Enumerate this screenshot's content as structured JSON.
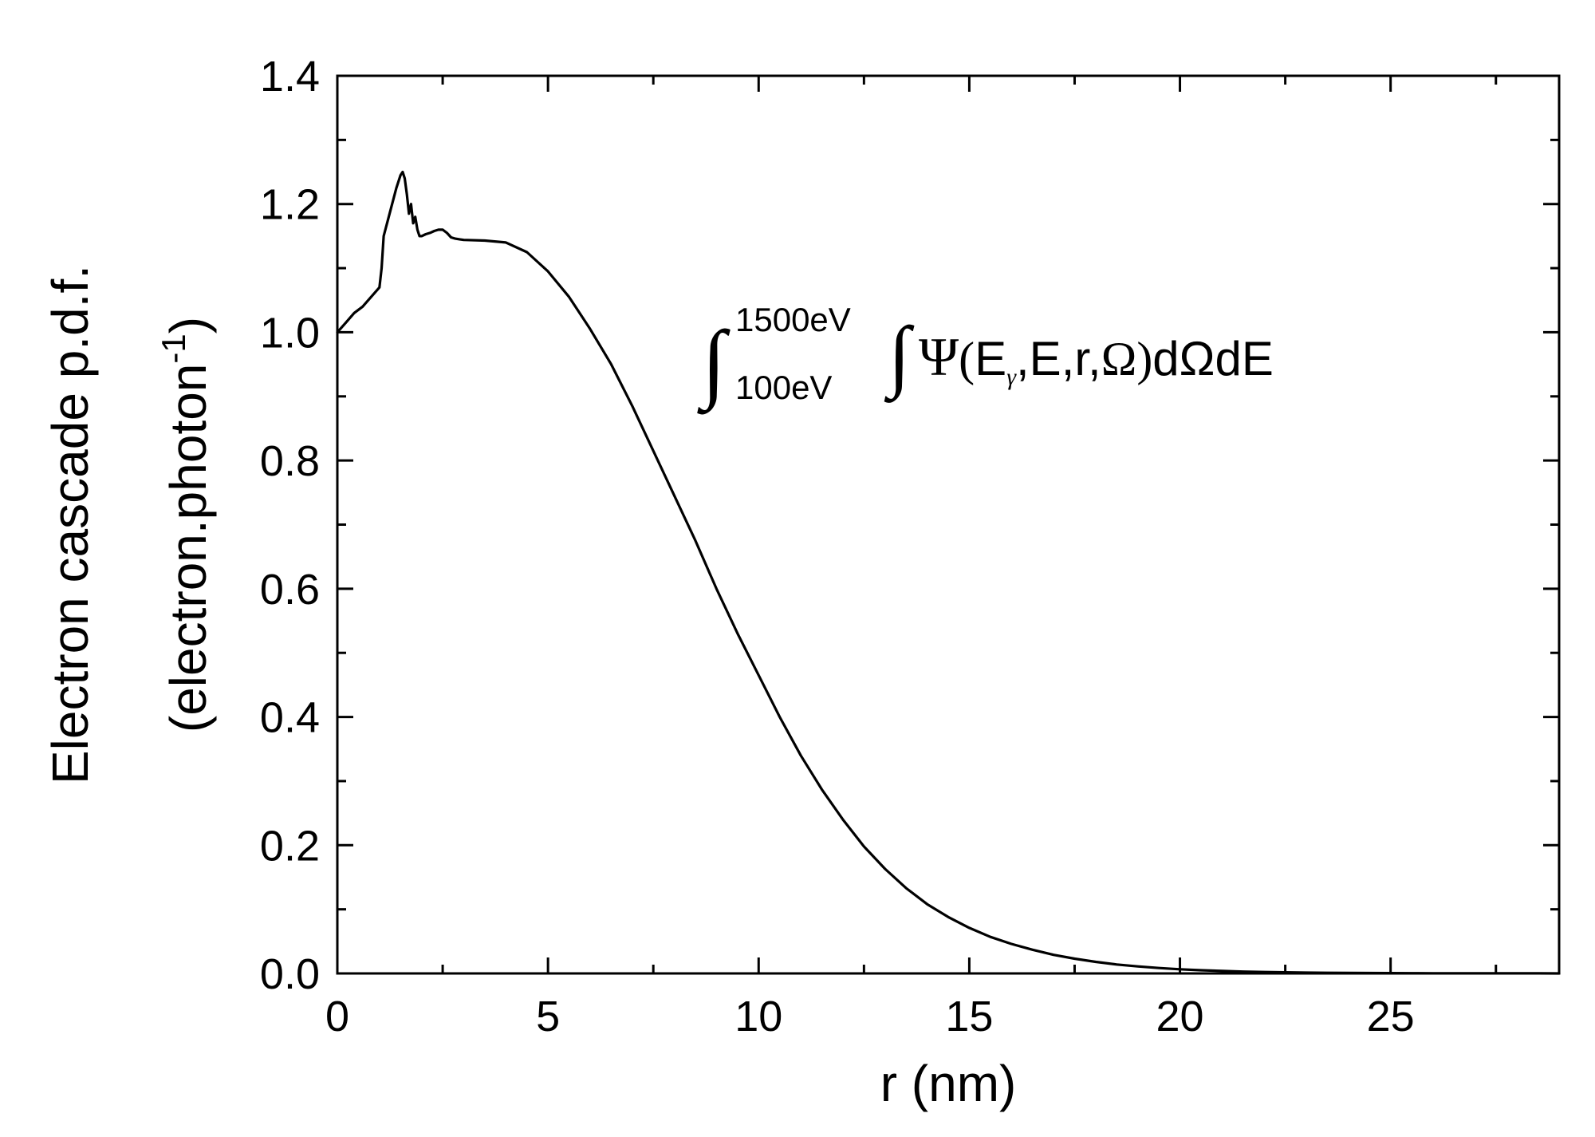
{
  "chart_data": {
    "type": "line",
    "xlabel": "r (nm)",
    "ylabel": {
      "line1": "Electron cascade p.d.f.",
      "line2_main": "(electron.photon",
      "line2_sup": "-1",
      "line2_end": ")"
    },
    "xlim": [
      0,
      29
    ],
    "ylim": [
      0,
      1.4
    ],
    "x_ticks": [
      0,
      5,
      10,
      15,
      20,
      25
    ],
    "x_tick_labels": [
      "0",
      "5",
      "10",
      "15",
      "20",
      "25"
    ],
    "y_ticks": [
      0,
      0.2,
      0.4,
      0.6,
      0.8,
      1.0,
      1.2,
      1.4
    ],
    "y_tick_labels": [
      "0.0",
      "0.2",
      "0.4",
      "0.6",
      "0.8",
      "1.0",
      "1.2",
      "1.4"
    ],
    "grid": false,
    "legend": "none",
    "line_color": "#000000",
    "annotation": {
      "integral_sign": "∫",
      "upper_limit": "1500eV",
      "lower_limit": "100eV",
      "inner_integral": "∫",
      "psi": "Ψ",
      "open_paren": "(",
      "e_gamma_E": "E",
      "e_gamma_sub": "γ",
      "args": ",E,r,",
      "omega": "Ω",
      "close_paren": ")",
      "d_omega_dE": "dΩdE"
    },
    "series": [
      {
        "x": [
          0,
          0.2,
          0.4,
          0.6,
          0.8,
          1.0,
          1.05,
          1.1,
          1.2,
          1.3,
          1.4,
          1.5,
          1.55,
          1.6,
          1.65,
          1.7,
          1.75,
          1.8,
          1.85,
          1.9,
          1.95,
          2.0,
          2.1,
          2.2,
          2.3,
          2.4,
          2.5,
          2.6,
          2.7,
          2.8,
          2.9,
          3.0,
          3.5,
          4.0,
          4.5,
          5.0,
          5.5,
          6.0,
          6.5,
          7.0,
          7.5,
          8.0,
          8.5,
          9.0,
          9.5,
          10.0,
          10.5,
          11.0,
          11.5,
          12.0,
          12.5,
          13.0,
          13.5,
          14.0,
          14.5,
          15.0,
          15.5,
          16.0,
          16.5,
          17.0,
          17.5,
          18.0,
          18.5,
          19.0,
          19.5,
          20.0,
          20.5,
          21.0,
          21.5,
          22.0,
          22.5,
          23.0,
          23.5,
          24.0,
          24.5,
          25.0,
          25.5,
          26.0,
          26.5,
          27.0,
          27.5,
          28.0,
          28.5,
          29.0
        ],
        "y": [
          1.0,
          1.015,
          1.03,
          1.04,
          1.055,
          1.07,
          1.1,
          1.15,
          1.175,
          1.2,
          1.225,
          1.245,
          1.25,
          1.24,
          1.215,
          1.185,
          1.2,
          1.17,
          1.18,
          1.16,
          1.15,
          1.15,
          1.153,
          1.155,
          1.158,
          1.16,
          1.16,
          1.155,
          1.148,
          1.146,
          1.145,
          1.144,
          1.143,
          1.14,
          1.125,
          1.095,
          1.055,
          1.005,
          0.95,
          0.885,
          0.815,
          0.745,
          0.675,
          0.6,
          0.53,
          0.465,
          0.4,
          0.34,
          0.287,
          0.24,
          0.198,
          0.163,
          0.133,
          0.108,
          0.088,
          0.071,
          0.057,
          0.046,
          0.037,
          0.029,
          0.023,
          0.018,
          0.014,
          0.011,
          0.0085,
          0.0065,
          0.005,
          0.0038,
          0.0029,
          0.0022,
          0.0017,
          0.0013,
          0.001,
          0.0008,
          0.0006,
          0.0005,
          0.0004,
          0.0003,
          0.0002,
          0.0002,
          0.0001,
          0.0001,
          0.0001,
          0.0
        ]
      }
    ]
  }
}
